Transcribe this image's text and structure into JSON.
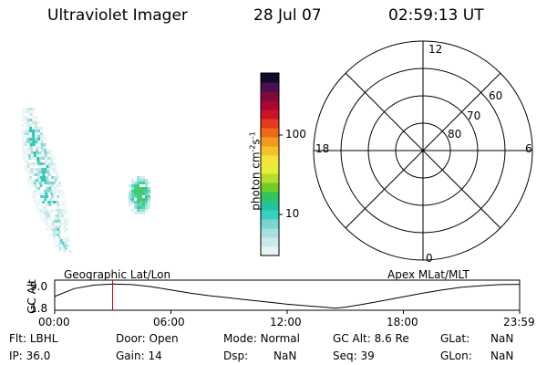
{
  "header": {
    "instrument": "Ultraviolet Imager",
    "date": "28 Jul 07",
    "time": "02:59:13 UT"
  },
  "colorbar": {
    "label_main": "photon cm",
    "label_sup1": "-2",
    "label_mid": "s",
    "label_sup2": "-1",
    "tick_100": "100",
    "tick_10": "10",
    "colors": [
      "#e8f4f4",
      "#cde8ea",
      "#a9dede",
      "#78d6d2",
      "#3ad0c0",
      "#22c49a",
      "#34c25c",
      "#70cc2a",
      "#b4de2c",
      "#e8ec3a",
      "#f2e43a",
      "#f4c22a",
      "#f29a1e",
      "#ee6a1a",
      "#e43a1c",
      "#cc1226",
      "#a80830",
      "#7c0a3e",
      "#48104e",
      "#100a2c"
    ]
  },
  "polar": {
    "lbl_12": "12",
    "lbl_18": "18",
    "lbl_6": "6",
    "lbl_0": "0",
    "lbl_60": "60",
    "lbl_70": "70",
    "lbl_80": "80"
  },
  "timeline": {
    "left_label": "Geographic Lat/Lon",
    "right_label": "Apex MLat/MLT",
    "axis_title": "GC Alt",
    "y_top": "9.0",
    "y_bottom": "1.8",
    "ticks": [
      "00:00",
      "06:00",
      "12:00",
      "18:00",
      "23:59"
    ],
    "marker_hours": 2.99
  },
  "info": {
    "filter_label": "Flt:",
    "filter_value": "LBHL",
    "door_label": "Door:",
    "door_value": "Open",
    "mode_label": "Mode:",
    "mode_value": "Normal",
    "gcalt_label": "GC Alt:",
    "gcalt_value": "8.6 Re",
    "glat_label": "GLat:",
    "glat_value": "NaN",
    "ip_label": "IP:",
    "ip_value": "36.0",
    "gain_label": "Gain:",
    "gain_value": "14",
    "dsp_label": "Dsp:",
    "dsp_value": "NaN",
    "seq_label": "Seq:",
    "seq_value": "39",
    "glon_label": "GLon:",
    "glon_value": "NaN"
  }
}
